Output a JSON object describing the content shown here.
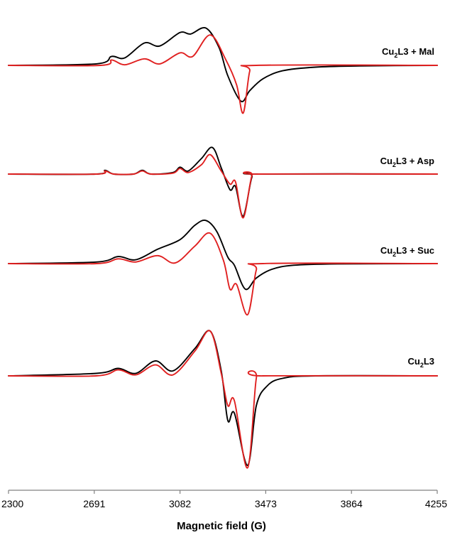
{
  "chart_data": {
    "type": "line",
    "xlabel": "Magnetic field (G)",
    "ylabel": "",
    "xlim": [
      2300,
      4255
    ],
    "x_ticks": [
      2300,
      2691,
      3082,
      3473,
      3864,
      4255
    ],
    "grid": false,
    "colors": {
      "experimental": "#000000",
      "simulated": "#e02020"
    },
    "spectra": [
      {
        "label_parts": [
          "Cu",
          "2",
          "L3 + Mal"
        ],
        "experimental": [
          [
            2300,
            0.0
          ],
          [
            2700,
            0.05
          ],
          [
            2770,
            0.3
          ],
          [
            2830,
            0.25
          ],
          [
            2920,
            0.75
          ],
          [
            2990,
            0.65
          ],
          [
            3082,
            1.1
          ],
          [
            3130,
            1.05
          ],
          [
            3200,
            1.25
          ],
          [
            3260,
            0.6
          ],
          [
            3300,
            -0.35
          ],
          [
            3360,
            -1.2
          ],
          [
            3400,
            -0.85
          ],
          [
            3460,
            -0.45
          ],
          [
            3550,
            -0.18
          ],
          [
            3700,
            -0.06
          ],
          [
            3900,
            -0.02
          ],
          [
            4255,
            0.0
          ]
        ],
        "simulated": [
          [
            2300,
            0.0
          ],
          [
            2720,
            0.0
          ],
          [
            2770,
            0.18
          ],
          [
            2830,
            0.02
          ],
          [
            2920,
            0.22
          ],
          [
            2990,
            0.05
          ],
          [
            3082,
            0.42
          ],
          [
            3140,
            0.3
          ],
          [
            3220,
            1.02
          ],
          [
            3290,
            0.2
          ],
          [
            3340,
            -0.65
          ],
          [
            3370,
            -1.6
          ],
          [
            3400,
            -0.2
          ],
          [
            3430,
            0.0
          ],
          [
            4255,
            0.0
          ]
        ]
      },
      {
        "label_parts": [
          "Cu",
          "2",
          "L3 + Asp"
        ],
        "experimental": [
          [
            2300,
            0.0
          ],
          [
            2700,
            0.0
          ],
          [
            2740,
            0.12
          ],
          [
            2780,
            0.0
          ],
          [
            2870,
            0.0
          ],
          [
            2910,
            0.12
          ],
          [
            2950,
            0.0
          ],
          [
            3050,
            0.05
          ],
          [
            3082,
            0.22
          ],
          [
            3120,
            0.1
          ],
          [
            3180,
            0.5
          ],
          [
            3230,
            0.85
          ],
          [
            3270,
            0.2
          ],
          [
            3310,
            -0.5
          ],
          [
            3335,
            -0.4
          ],
          [
            3370,
            -1.35
          ],
          [
            3410,
            -0.1
          ],
          [
            3440,
            0.0
          ],
          [
            4255,
            0.0
          ]
        ],
        "simulated": [
          [
            2300,
            0.0
          ],
          [
            2700,
            0.0
          ],
          [
            2740,
            0.1
          ],
          [
            2780,
            0.0
          ],
          [
            2870,
            0.0
          ],
          [
            2910,
            0.1
          ],
          [
            2950,
            0.0
          ],
          [
            3050,
            0.03
          ],
          [
            3082,
            0.18
          ],
          [
            3120,
            0.05
          ],
          [
            3180,
            0.3
          ],
          [
            3220,
            0.62
          ],
          [
            3270,
            0.1
          ],
          [
            3310,
            -0.32
          ],
          [
            3335,
            -0.25
          ],
          [
            3370,
            -1.4
          ],
          [
            3410,
            -0.05
          ],
          [
            3440,
            0.0
          ],
          [
            4255,
            0.0
          ]
        ]
      },
      {
        "label_parts": [
          "Cu",
          "2",
          "L3 + Suc"
        ],
        "experimental": [
          [
            2300,
            0.0
          ],
          [
            2700,
            0.05
          ],
          [
            2800,
            0.22
          ],
          [
            2880,
            0.12
          ],
          [
            2980,
            0.45
          ],
          [
            3082,
            0.75
          ],
          [
            3150,
            1.2
          ],
          [
            3200,
            1.35
          ],
          [
            3250,
            1.0
          ],
          [
            3300,
            0.2
          ],
          [
            3330,
            -0.05
          ],
          [
            3380,
            -0.8
          ],
          [
            3430,
            -0.45
          ],
          [
            3500,
            -0.18
          ],
          [
            3600,
            -0.05
          ],
          [
            3800,
            -0.01
          ],
          [
            4255,
            0.0
          ]
        ],
        "simulated": [
          [
            2300,
            0.0
          ],
          [
            2700,
            0.0
          ],
          [
            2800,
            0.15
          ],
          [
            2880,
            0.05
          ],
          [
            2980,
            0.25
          ],
          [
            3060,
            0.02
          ],
          [
            3150,
            0.55
          ],
          [
            3220,
            0.95
          ],
          [
            3280,
            0.1
          ],
          [
            3310,
            -0.8
          ],
          [
            3340,
            -0.65
          ],
          [
            3390,
            -1.6
          ],
          [
            3430,
            -0.2
          ],
          [
            3460,
            0.0
          ],
          [
            4255,
            0.0
          ]
        ]
      },
      {
        "label_parts": [
          "Cu",
          "2",
          "L3"
        ],
        "experimental": [
          [
            2300,
            0.0
          ],
          [
            2700,
            0.05
          ],
          [
            2800,
            0.15
          ],
          [
            2880,
            0.05
          ],
          [
            2970,
            0.3
          ],
          [
            3050,
            0.1
          ],
          [
            3150,
            0.55
          ],
          [
            3220,
            0.9
          ],
          [
            3270,
            0.1
          ],
          [
            3300,
            -0.9
          ],
          [
            3330,
            -0.75
          ],
          [
            3390,
            -1.8
          ],
          [
            3430,
            -0.6
          ],
          [
            3480,
            -0.2
          ],
          [
            3550,
            -0.05
          ],
          [
            3700,
            0.0
          ],
          [
            4255,
            0.0
          ]
        ],
        "simulated": [
          [
            2300,
            0.0
          ],
          [
            2700,
            0.0
          ],
          [
            2800,
            0.12
          ],
          [
            2880,
            0.02
          ],
          [
            2970,
            0.22
          ],
          [
            3050,
            0.02
          ],
          [
            3150,
            0.5
          ],
          [
            3220,
            0.9
          ],
          [
            3270,
            0.05
          ],
          [
            3300,
            -0.6
          ],
          [
            3330,
            -0.5
          ],
          [
            3390,
            -1.85
          ],
          [
            3430,
            -0.05
          ],
          [
            3460,
            0.0
          ],
          [
            4255,
            0.0
          ]
        ]
      }
    ]
  }
}
